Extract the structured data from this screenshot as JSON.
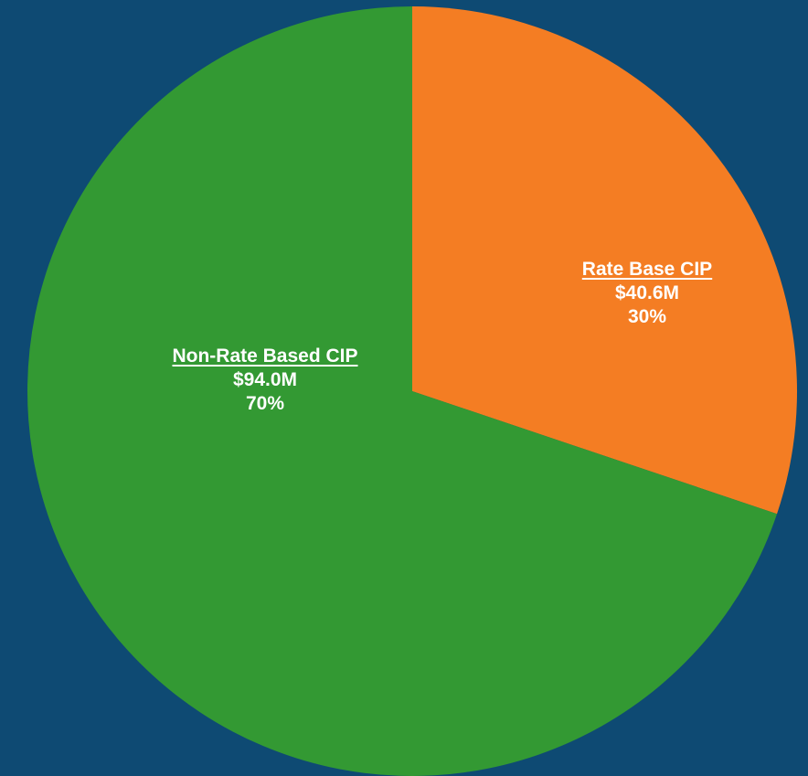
{
  "chart_data": {
    "type": "pie",
    "slices": [
      {
        "label": "Rate Base CIP",
        "value_text": "$40.6M",
        "value": 40.6,
        "percent": 30,
        "percent_text": "30%",
        "color": "#f47d23"
      },
      {
        "label": "Non-Rate Based CIP",
        "value_text": "$94.0M",
        "value": 94.0,
        "percent": 70,
        "percent_text": "70%",
        "color": "#339933"
      }
    ],
    "start_position": "12 o'clock",
    "direction": "clockwise",
    "legend": "none",
    "background_color": "#0e4a73"
  }
}
